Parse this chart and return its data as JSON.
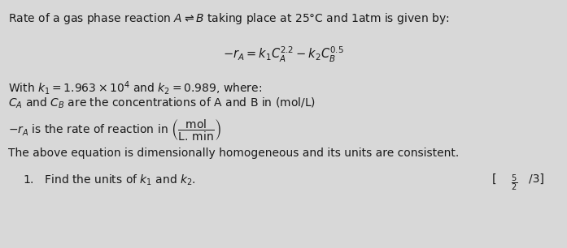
{
  "bg_color": "#d8d8d8",
  "text_color": "#1a1a1a",
  "title_line": "Rate of a gas phase reaction $A \\rightleftharpoons B$ taking place at 25°C and 1atm is given by:",
  "equation": "$-r_A = k_1C_A^{2.2} - k_2C_B^{0.5}$",
  "with_line": "With $k_1 = 1.963 \\times 10^4$ and $k_2 = 0.989$, where:",
  "ca_cb_line": "$C_A$ and $C_B$ are the concentrations of A and B in (mol/L)",
  "rate_line": "$-r_A$ is the rate of reaction in $\\left(\\dfrac{\\mathrm{mol}}{\\mathrm{L.\\,min}}\\right)$",
  "consistent_line": "The above equation is dimensionally homogeneous and its units are consistent.",
  "question_line": "1.   Find the units of $k_1$ and $k_2$.",
  "figsize": [
    6.97,
    3.06
  ],
  "dpi": 100
}
